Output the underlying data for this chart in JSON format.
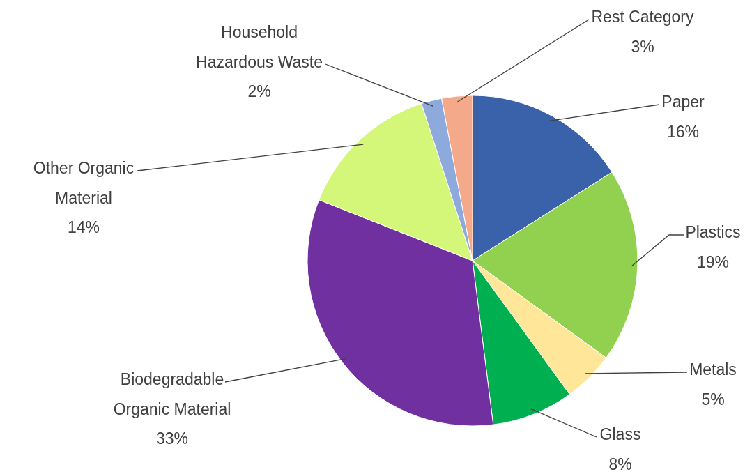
{
  "chart_data": {
    "type": "pie",
    "categories": [
      "Paper",
      "Plastics",
      "Metals",
      "Glass",
      "Biodegradable Organic Material",
      "Other Organic Material",
      "Household Hazardous Waste",
      "Rest Category"
    ],
    "values": [
      16,
      19,
      5,
      8,
      33,
      14,
      2,
      3
    ],
    "colors": [
      "#3a62ab",
      "#92d050",
      "#ffe699",
      "#00b050",
      "#7030a0",
      "#d4f779",
      "#8ea9db",
      "#f4a98a"
    ],
    "value_labels": [
      "16%",
      "19%",
      "5%",
      "8%",
      "33%",
      "14%",
      "2%",
      "3%"
    ]
  }
}
